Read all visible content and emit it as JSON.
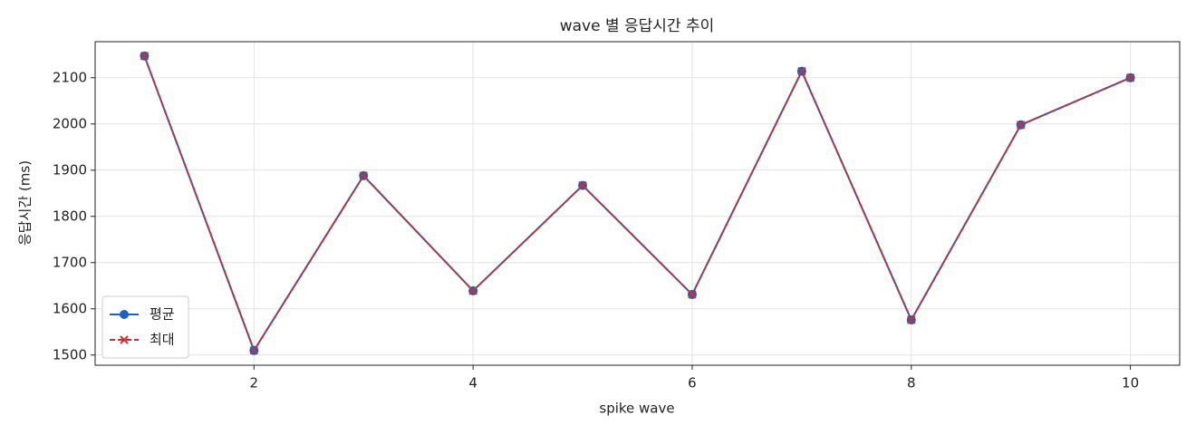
{
  "chart_data": {
    "type": "line",
    "title": "wave 별 응답시간 추이",
    "x_label": "spike wave",
    "y_label": "응답시간 (ms)",
    "x": [
      1,
      2,
      3,
      4,
      5,
      6,
      7,
      8,
      9,
      10
    ],
    "series": [
      {
        "name": "평균",
        "color": "#1f5fbf",
        "linestyle": "solid",
        "marker": "circle",
        "values": [
          2147,
          1510,
          1888,
          1639,
          1867,
          1631,
          2114,
          1576,
          1998,
          2100
        ]
      },
      {
        "name": "최대",
        "color": "#c73232",
        "linestyle": "dashed",
        "marker": "x",
        "values": [
          2147,
          1510,
          1888,
          1639,
          1867,
          1631,
          2114,
          1576,
          1998,
          2100
        ]
      }
    ],
    "xlim": [
      0.55,
      10.45
    ],
    "xticks": [
      2,
      4,
      6,
      8,
      10
    ],
    "ylim": [
      1478,
      2178
    ],
    "yticks": [
      1500,
      1600,
      1700,
      1800,
      1900,
      2000,
      2100
    ],
    "grid": true,
    "legend": "lower left"
  }
}
